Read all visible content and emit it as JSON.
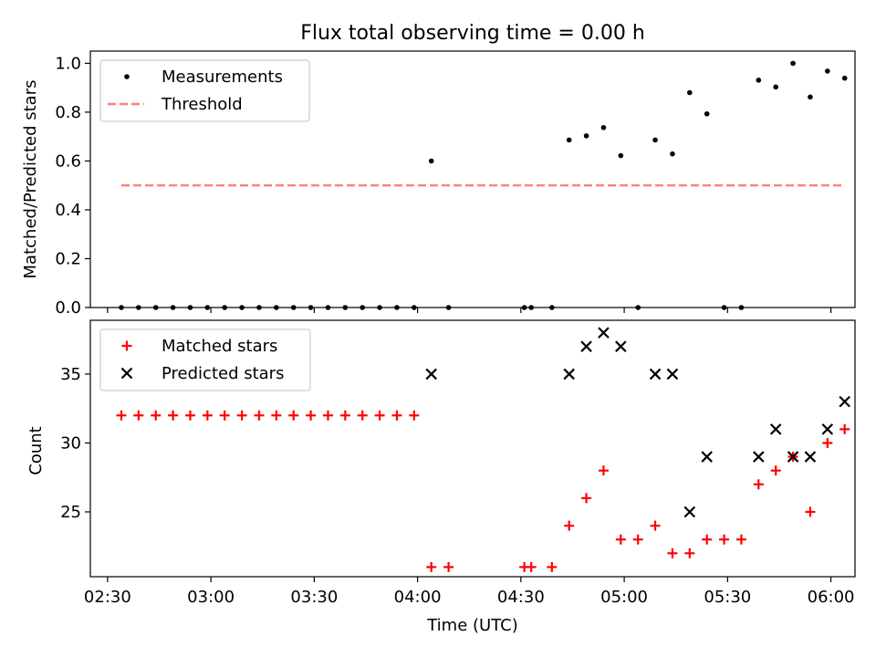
{
  "figure": {
    "title": "Flux total observing time = 0.00 h"
  },
  "chart_data": [
    {
      "type": "scatter",
      "ylabel": "Matched/Predicted stars",
      "xlim": [
        "02:25",
        "06:07"
      ],
      "ylim": [
        0,
        1.05
      ],
      "yticks": [
        0.0,
        0.2,
        0.4,
        0.6,
        0.8,
        1.0
      ],
      "ytick_labels": [
        "0.0",
        "0.2",
        "0.4",
        "0.6",
        "0.8",
        "1.0"
      ],
      "legend_position": "top-left",
      "series": [
        {
          "name": "Measurements",
          "kind": "dots",
          "color": "#000000",
          "x": [
            "02:34",
            "02:39",
            "02:44",
            "02:49",
            "02:54",
            "02:59",
            "03:04",
            "03:09",
            "03:14",
            "03:19",
            "03:24",
            "03:29",
            "03:34",
            "03:39",
            "03:44",
            "03:49",
            "03:54",
            "03:59",
            "04:04",
            "04:09",
            "04:31",
            "04:33",
            "04:39",
            "04:44",
            "04:49",
            "04:54",
            "04:59",
            "05:04",
            "05:09",
            "05:14",
            "05:19",
            "05:24",
            "05:29",
            "05:34",
            "05:39",
            "05:44",
            "05:49",
            "05:54",
            "05:59",
            "06:04"
          ],
          "y": [
            0,
            0,
            0,
            0,
            0,
            0,
            0,
            0,
            0,
            0,
            0,
            0,
            0,
            0,
            0,
            0,
            0,
            0,
            0.6,
            0,
            0,
            0,
            0,
            0.686,
            0.703,
            0.737,
            0.622,
            0,
            0.686,
            0.629,
            0.88,
            0.793,
            0,
            0,
            0.931,
            0.903,
            1.0,
            0.862,
            0.968,
            0.939
          ]
        },
        {
          "name": "Threshold",
          "kind": "dashed-line",
          "color": "#ff7f7f",
          "x": [
            "02:34",
            "06:03"
          ],
          "y": [
            0.5,
            0.5
          ]
        }
      ]
    },
    {
      "type": "scatter",
      "xlabel": "Time (UTC)",
      "ylabel": "Count",
      "xlim": [
        "02:25",
        "06:07"
      ],
      "ylim": [
        20.3,
        38.9
      ],
      "xticks": [
        "02:30",
        "03:00",
        "03:30",
        "04:00",
        "04:30",
        "05:00",
        "05:30",
        "06:00"
      ],
      "yticks": [
        25,
        30,
        35
      ],
      "ytick_labels": [
        "25",
        "30",
        "35"
      ],
      "legend_position": "top-left",
      "series": [
        {
          "name": "Matched stars",
          "kind": "plus",
          "color": "#ff0000",
          "x": [
            "02:34",
            "02:39",
            "02:44",
            "02:49",
            "02:54",
            "02:59",
            "03:04",
            "03:09",
            "03:14",
            "03:19",
            "03:24",
            "03:29",
            "03:34",
            "03:39",
            "03:44",
            "03:49",
            "03:54",
            "03:59",
            "04:04",
            "04:09",
            "04:31",
            "04:33",
            "04:39",
            "04:44",
            "04:49",
            "04:54",
            "04:59",
            "05:04",
            "05:09",
            "05:14",
            "05:19",
            "05:24",
            "05:29",
            "05:34",
            "05:39",
            "05:44",
            "05:49",
            "05:54",
            "05:59",
            "06:04"
          ],
          "y": [
            32,
            32,
            32,
            32,
            32,
            32,
            32,
            32,
            32,
            32,
            32,
            32,
            32,
            32,
            32,
            32,
            32,
            32,
            21,
            21,
            21,
            21,
            21,
            24,
            26,
            28,
            23,
            23,
            24,
            22,
            22,
            23,
            23,
            23,
            27,
            28,
            29,
            25,
            30,
            31
          ]
        },
        {
          "name": "Predicted stars",
          "kind": "cross",
          "color": "#000000",
          "x": [
            "04:04",
            "04:44",
            "04:49",
            "04:54",
            "04:59",
            "05:09",
            "05:14",
            "05:19",
            "05:24",
            "05:39",
            "05:44",
            "05:49",
            "05:54",
            "05:59",
            "06:04"
          ],
          "y": [
            35,
            35,
            37,
            38,
            37,
            35,
            35,
            25,
            29,
            29,
            31,
            29,
            29,
            31,
            33
          ]
        }
      ]
    }
  ]
}
